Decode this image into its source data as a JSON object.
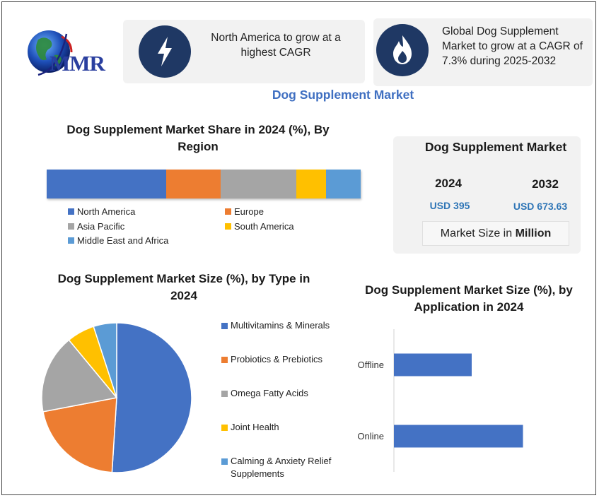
{
  "logo": {
    "text": "MMR"
  },
  "cards": [
    {
      "icon": "lightning-bolt-icon",
      "text": "North America to grow at a highest CAGR"
    },
    {
      "icon": "flame-icon",
      "text": "Global Dog Supplement Market to grow at a CAGR of 7.3% during 2025-2032"
    }
  ],
  "main_title": "Dog Supplement Market",
  "market_box": {
    "title": "Dog Supplement Market",
    "year1": "2024",
    "value1": "USD 395",
    "year2": "2032",
    "value2": "USD 673.63",
    "size_prefix": "Market Size in ",
    "size_unit": "Million"
  },
  "colors": {
    "blue": "#4472c4",
    "orange": "#ed7d31",
    "gray": "#a5a5a5",
    "yellow": "#ffc000",
    "lightblue": "#5b9bd5",
    "navy": "#1f3864",
    "title_blue": "#3f6fc1"
  },
  "chart_data": [
    {
      "type": "bar",
      "orientation": "horizontal-stacked",
      "title": "Dog Supplement Market Share in 2024 (%), By Region",
      "series": [
        {
          "name": "North America",
          "values": [
            38
          ]
        },
        {
          "name": "Europe",
          "values": [
            17.5
          ]
        },
        {
          "name": "Asia Pacific",
          "values": [
            24
          ]
        },
        {
          "name": "South America",
          "values": [
            9.5
          ]
        },
        {
          "name": "Middle East and Africa",
          "values": [
            11
          ]
        }
      ],
      "legend": "bottom"
    },
    {
      "type": "pie",
      "title": "Dog Supplement Market Size (%), by  Type in 2024",
      "labels": [
        "Multivitamins & Minerals",
        "Probiotics & Prebiotics",
        "Omega Fatty Acids",
        "Joint Health",
        "Calming & Anxiety Relief Supplements"
      ],
      "values": [
        51,
        21,
        17,
        6,
        5
      ],
      "legend": "right"
    },
    {
      "type": "bar",
      "orientation": "horizontal",
      "title": "Dog Supplement Market Size (%), by Application in 2024",
      "categories": [
        "Offline",
        "Online"
      ],
      "values": [
        44,
        73
      ],
      "xlim": [
        0,
        100
      ],
      "grid": false
    }
  ]
}
